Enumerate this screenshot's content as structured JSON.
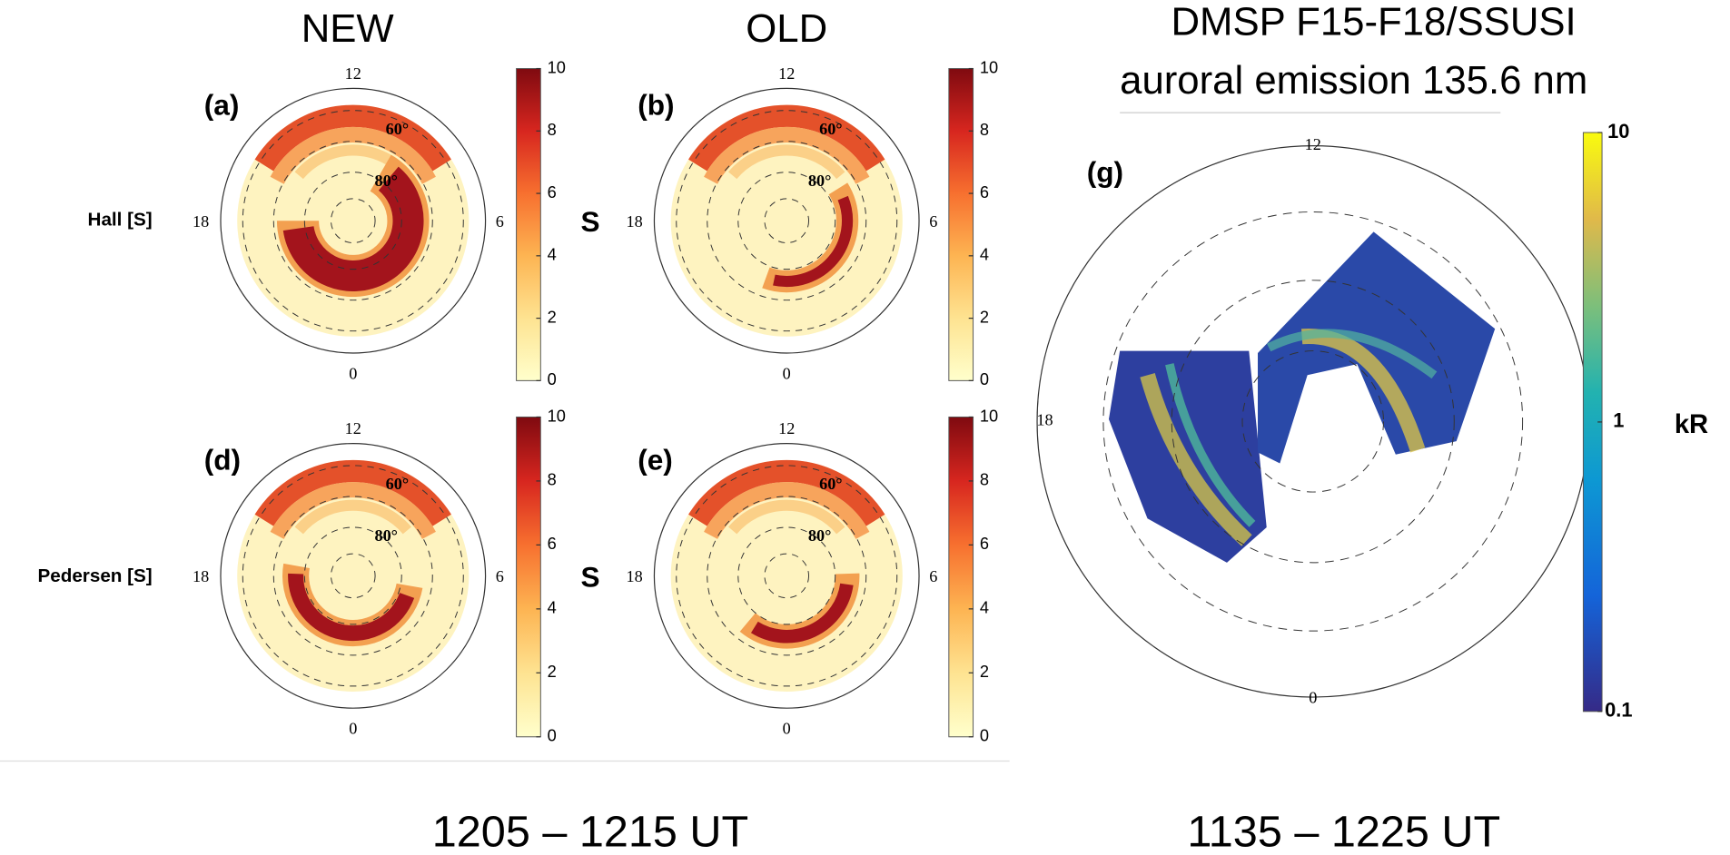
{
  "titles": {
    "new": "NEW",
    "old": "OLD",
    "dmsp": [
      "DMSP F15-F18/SSUSI",
      "auroral emission 135.6 nm"
    ]
  },
  "rows": [
    "Hall [S]",
    "Pedersen [S]"
  ],
  "panels": [
    "(a)",
    "(b)",
    "(d)",
    "(e)",
    "(g)"
  ],
  "polar_labels": {
    "top": "12",
    "bottom": "0",
    "left": "18",
    "right": "6",
    "lat60": "60°",
    "lat80": "80°"
  },
  "colorbar_conductance": {
    "clim": [
      0,
      10
    ],
    "ticks": [
      0,
      2,
      4,
      6,
      8,
      10
    ],
    "unit": "S"
  },
  "colorbar_emission": {
    "clim": [
      0.1,
      10
    ],
    "log": true,
    "ticks": [
      0.1,
      1,
      10
    ],
    "unit": "kR"
  },
  "times": [
    "1205 – 1215 UT",
    "1135 – 1225 UT"
  ]
}
